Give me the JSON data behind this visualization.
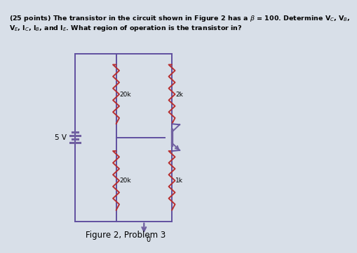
{
  "caption": "Figure 2, Problem 3",
  "bg_color": "#d8dfe8",
  "circuit_color": "#7060a0",
  "resistor_color": "#b83030",
  "wire_color": "#6050a0",
  "label_20k_top": "20k",
  "label_2k": "2k",
  "label_20k_bot": "20k",
  "label_1k": "1k",
  "label_5v": "5 V",
  "label_gnd": "0",
  "title_line1": "(25 points) The transistor in the circuit shown in Figure 2 has a β = 100. Determine Vᴄ, Vʙ,",
  "title_line2": "Vᴇ, Iᴄ, Iʙ, and Iᴇ. What region of operation is the transistor in?"
}
